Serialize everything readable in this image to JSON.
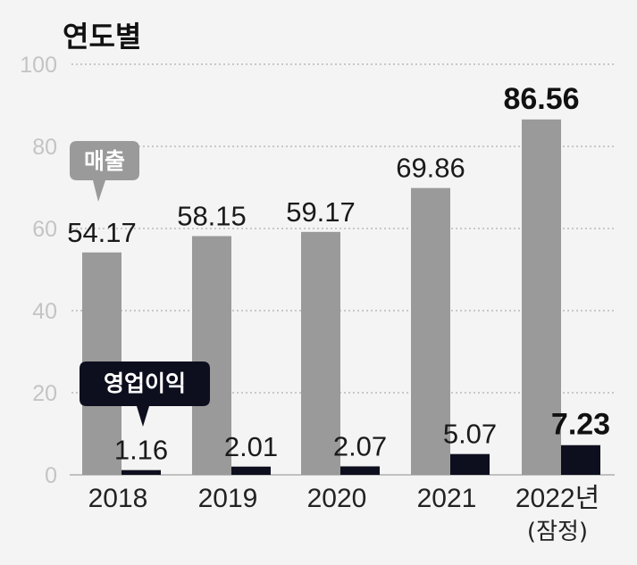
{
  "chart_data": {
    "type": "bar",
    "title": "연도별",
    "categories": [
      "2018",
      "2019",
      "2020",
      "2021",
      "2022년"
    ],
    "category_sublabels": [
      "",
      "",
      "",
      "",
      "(잠정)"
    ],
    "ylim": [
      0,
      100
    ],
    "yticks": [
      0,
      20,
      40,
      60,
      80,
      100
    ],
    "grid": true,
    "series": [
      {
        "name": "매출",
        "color": "#9a9a9a",
        "values": [
          54.17,
          58.15,
          59.17,
          69.86,
          86.56
        ],
        "labels": [
          "54.17",
          "58.15",
          "59.17",
          "69.86",
          "86.56"
        ]
      },
      {
        "name": "영업이익",
        "color": "#0d0f1e",
        "values": [
          1.16,
          2.01,
          2.07,
          5.07,
          7.23
        ],
        "labels": [
          "1.16",
          "2.01",
          "2.07",
          "5.07",
          "7.23"
        ]
      }
    ],
    "highlight_last": true
  }
}
